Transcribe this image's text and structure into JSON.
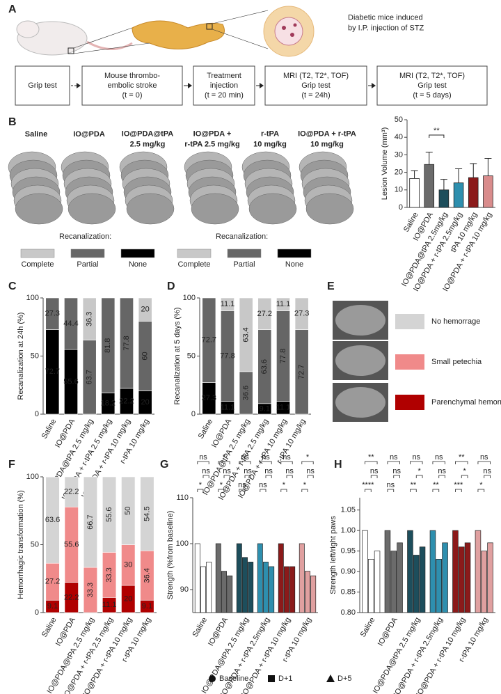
{
  "panel_a": {
    "panel": "A",
    "note": [
      "Diabetic mice induced",
      "by I.P. injection of STZ"
    ],
    "boxes": [
      [
        "Grip test"
      ],
      [
        "Mouse thrombo-",
        "embolic stroke",
        "(t = 0)"
      ],
      [
        "Treatment",
        "injection",
        "(t = 20 min)"
      ],
      [
        "MRI (T2, T2*, TOF)",
        "Grip test",
        "(t = 24h)"
      ],
      [
        "MRI (T2, T2*, TOF)",
        "Grip test",
        "(t = 5 days)"
      ]
    ]
  },
  "panel_b_images": {
    "groups": [
      {
        "label": [
          "Saline"
        ],
        "color": "#111111"
      },
      {
        "label": [
          "IO@PDA"
        ],
        "color": "#7a7a7a"
      },
      {
        "label": [
          "IO@PDA@tPA",
          "2.5 mg/kg"
        ],
        "color": "#1d4e5c"
      },
      {
        "label": [
          "IO@PDA +",
          "r-tPA 2.5 mg/kg"
        ],
        "color": "#2e8fae"
      },
      {
        "label": [
          "r-tPA",
          "10 mg/kg"
        ],
        "color": "#8b1a1a"
      },
      {
        "label": [
          "IO@PDA + r-tPA",
          "10 mg/kg"
        ],
        "color": "#e0a0a0"
      }
    ]
  },
  "panel_e": {
    "panel": "E"
  },
  "chart_data": [
    {
      "type": "bar",
      "panel": "B",
      "ylabel": "Lesion Volume (mm³)",
      "categories": [
        "Saline",
        "IO@PDA",
        "IO@PDA@tPA 2.5mg/kg",
        "IO@PDA + r-tPA 2.5mg/kg",
        "tPA 10 mg/kg",
        "IO@PDA + r-tPA 10 mg/kg"
      ],
      "values": [
        16.5,
        24.5,
        10,
        14,
        17,
        18
      ],
      "errors": [
        4.5,
        7,
        6,
        8,
        8,
        10
      ],
      "colors": [
        "#ffffff",
        "#6b6b6b",
        "#1d4e5c",
        "#2e8fae",
        "#8b1a1a",
        "#d98c8c"
      ],
      "ylim": [
        0,
        50
      ],
      "yticks": [
        0,
        10,
        20,
        30,
        40,
        50
      ],
      "annotation": "**"
    },
    {
      "type": "stacked_bar",
      "panel": "C",
      "ylabel": "Recanalization at 24h (%)",
      "legend_title": "Recanalization:",
      "categories": [
        "Saline",
        "IO@PDA",
        "IO@PDA@tPA 2.5 mg/kg",
        "IO@PDA + r-tPA 2.5 mg/kg",
        "IO@PDA + r-tPA 10 mg/kg",
        "r-tPA 10 mg/kg"
      ],
      "series": [
        {
          "name": "None",
          "color": "#000000",
          "values": [
            72.7,
            55.6,
            0,
            18.2,
            22.2,
            20
          ]
        },
        {
          "name": "Partial",
          "color": "#666666",
          "values": [
            27.3,
            44.4,
            63.7,
            81.8,
            77.8,
            60
          ]
        },
        {
          "name": "Complete",
          "color": "#c8c8c8",
          "values": [
            0,
            0,
            36.3,
            0,
            0,
            20
          ]
        }
      ],
      "ylim": [
        0,
        100
      ],
      "yticks": [
        0,
        50,
        100
      ]
    },
    {
      "type": "stacked_bar",
      "panel": "D",
      "ylabel": "Recanalization at 5 days (%)",
      "legend_title": "Recanalization:",
      "categories": [
        "Saline",
        "IO@PDA",
        "IO@PDA@tPA 2.5 mg/kg",
        "IO@PDA + r-tPA 2.5 mg/kg",
        "IO@PDA + r-tPA 10 mg/kg",
        "r-tPA 10 mg/kg"
      ],
      "series": [
        {
          "name": "None",
          "color": "#000000",
          "values": [
            27.3,
            11.1,
            0,
            9.1,
            11.1,
            0
          ]
        },
        {
          "name": "Partial",
          "color": "#666666",
          "values": [
            72.7,
            77.8,
            36.6,
            63.6,
            77.8,
            72.7
          ]
        },
        {
          "name": "Complete",
          "color": "#c8c8c8",
          "values": [
            0,
            11.1,
            63.4,
            27.2,
            11.1,
            27.3
          ]
        }
      ],
      "ylim": [
        0,
        100
      ],
      "yticks": [
        0,
        50,
        100
      ]
    },
    {
      "type": "stacked_bar",
      "panel": "F",
      "ylabel": "Hemorrhagic transformation (%)",
      "categories": [
        "Saline",
        "IO@PDA",
        "IO@PDA@tPA 2.5 mg/kg",
        "IO@PDA + r-tPA 2.5 mg/kg",
        "IO@PDA + r-tPA 10 mg/kg",
        "r-tPA 10 mg/kg"
      ],
      "series": [
        {
          "name": "Parenchymal hemorrage",
          "color": "#b00000",
          "values": [
            9.1,
            22.2,
            0,
            11.1,
            20,
            9.1
          ]
        },
        {
          "name": "Small petechia",
          "color": "#f08a8a",
          "values": [
            27.2,
            55.6,
            33.3,
            33.3,
            30,
            36.4
          ]
        },
        {
          "name": "No hemorrage",
          "color": "#d4d4d4",
          "values": [
            63.6,
            22.2,
            66.7,
            55.6,
            50,
            54.5
          ]
        }
      ],
      "ylim": [
        0,
        100
      ],
      "yticks": [
        0,
        50,
        100
      ]
    },
    {
      "type": "grouped_bar",
      "panel": "G",
      "ylabel": "Strength (%from baseline)",
      "categories": [
        "Saline",
        "IO@PDA",
        "IO@PDA@tPA 2.5 mg/kg",
        "IO@PDA + r-tPA 2.5mg/kg",
        "IO@PDA + r-tPA 10 mg/kg",
        "r-tPA 10 mg/kg"
      ],
      "colors": [
        "#ffffff",
        "#6b6b6b",
        "#1d4e5c",
        "#2e8fae",
        "#8b1a1a",
        "#e0a0a0"
      ],
      "series": [
        {
          "name": "Baseline",
          "values": [
            100,
            100,
            100,
            100,
            100,
            100
          ]
        },
        {
          "name": "D+1",
          "values": [
            95,
            94,
            97,
            96,
            95,
            94
          ]
        },
        {
          "name": "D+5",
          "values": [
            96,
            93,
            96,
            95,
            95,
            93
          ]
        }
      ],
      "significance": [
        [
          "ns",
          "ns",
          "*"
        ],
        [
          "*",
          "ns",
          "*"
        ],
        [
          "ns",
          "ns",
          "ns"
        ],
        [
          "ns",
          "ns",
          "ns"
        ],
        [
          "ns",
          "ns",
          "*"
        ],
        [
          "*",
          "ns",
          "*"
        ]
      ],
      "ylim": [
        85,
        110
      ],
      "yticks": [
        90,
        100,
        110
      ]
    },
    {
      "type": "grouped_bar",
      "panel": "H",
      "ylabel": "Strength left/right paws",
      "categories": [
        "Saline",
        "IO@PDA",
        "IO@PDA@tPA 2.5 mg/kg",
        "IO@PDA + r-tPA 2.5mg/kg",
        "IO@PDA + r-tPA 10 mg/kg",
        "r-tPA 10 mg/kg"
      ],
      "colors": [
        "#ffffff",
        "#6b6b6b",
        "#1d4e5c",
        "#2e8fae",
        "#8b1a1a",
        "#e0a0a0"
      ],
      "series": [
        {
          "values": [
            1.0,
            1.0,
            1.0,
            1.0,
            1.0,
            1.0
          ]
        },
        {
          "values": [
            0.93,
            0.95,
            0.94,
            0.93,
            0.96,
            0.95
          ]
        },
        {
          "values": [
            0.95,
            0.97,
            0.96,
            0.97,
            0.97,
            0.97
          ]
        }
      ],
      "significance": [
        [
          "**",
          "ns",
          "****"
        ],
        [
          "ns",
          "ns",
          "ns"
        ],
        [
          "ns",
          "*",
          "**"
        ],
        [
          "ns",
          "ns",
          "**"
        ],
        [
          "**",
          "*",
          "***"
        ],
        [
          "ns",
          "ns",
          "*"
        ]
      ],
      "ylim": [
        0.8,
        1.08
      ],
      "yticks": [
        {
          "value": 0.8,
          "label": "0.80"
        },
        {
          "value": 0.85,
          "label": "0.85"
        },
        {
          "value": 0.9,
          "label": "0.90"
        },
        {
          "value": 0.95,
          "label": "0.95"
        },
        {
          "value": 1.0,
          "label": "1.00"
        },
        {
          "value": 1.05,
          "label": "1.05"
        }
      ]
    }
  ]
}
